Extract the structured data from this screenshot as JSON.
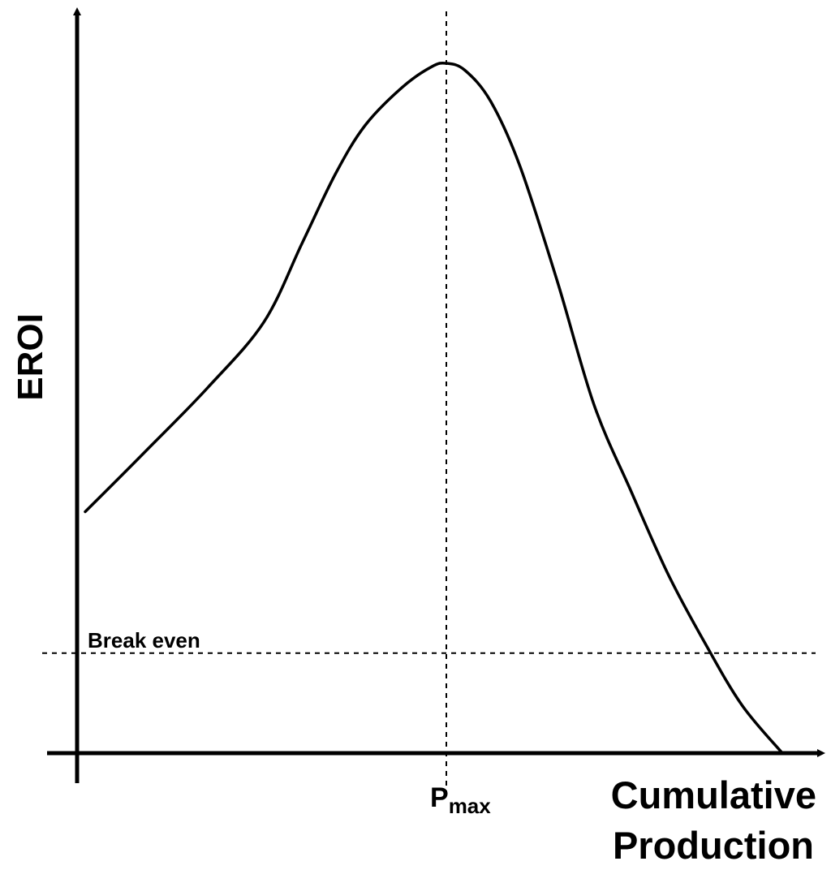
{
  "chart_data": {
    "type": "line",
    "title": "",
    "xlabel": "Cumulative Production",
    "xlabel_lines": [
      "Cumulative",
      "Production"
    ],
    "ylabel": "EROI",
    "x_tick": {
      "base": "P",
      "sub": "max",
      "x": 0.5
    },
    "reference_lines": [
      {
        "orientation": "horizontal",
        "y": 0.145,
        "label": "Break even",
        "style": "dotted"
      },
      {
        "orientation": "vertical",
        "x": 0.5,
        "style": "dotted"
      }
    ],
    "xlim": [
      0,
      1
    ],
    "ylim": [
      0,
      1
    ],
    "grid": false,
    "legend": "none",
    "series": [
      {
        "values_note": "qualitative curve, normalized units",
        "x": [
          0.011,
          0.095,
          0.177,
          0.253,
          0.305,
          0.35,
          0.39,
          0.44,
          0.48,
          0.5,
          0.525,
          0.56,
          0.6,
          0.65,
          0.7,
          0.75,
          0.8,
          0.85,
          0.9,
          0.955
        ],
        "y": [
          0.35,
          0.44,
          0.53,
          0.625,
          0.74,
          0.84,
          0.91,
          0.965,
          0.995,
          1.0,
          0.99,
          0.945,
          0.85,
          0.685,
          0.505,
          0.38,
          0.26,
          0.16,
          0.07,
          0.0
        ]
      }
    ]
  }
}
